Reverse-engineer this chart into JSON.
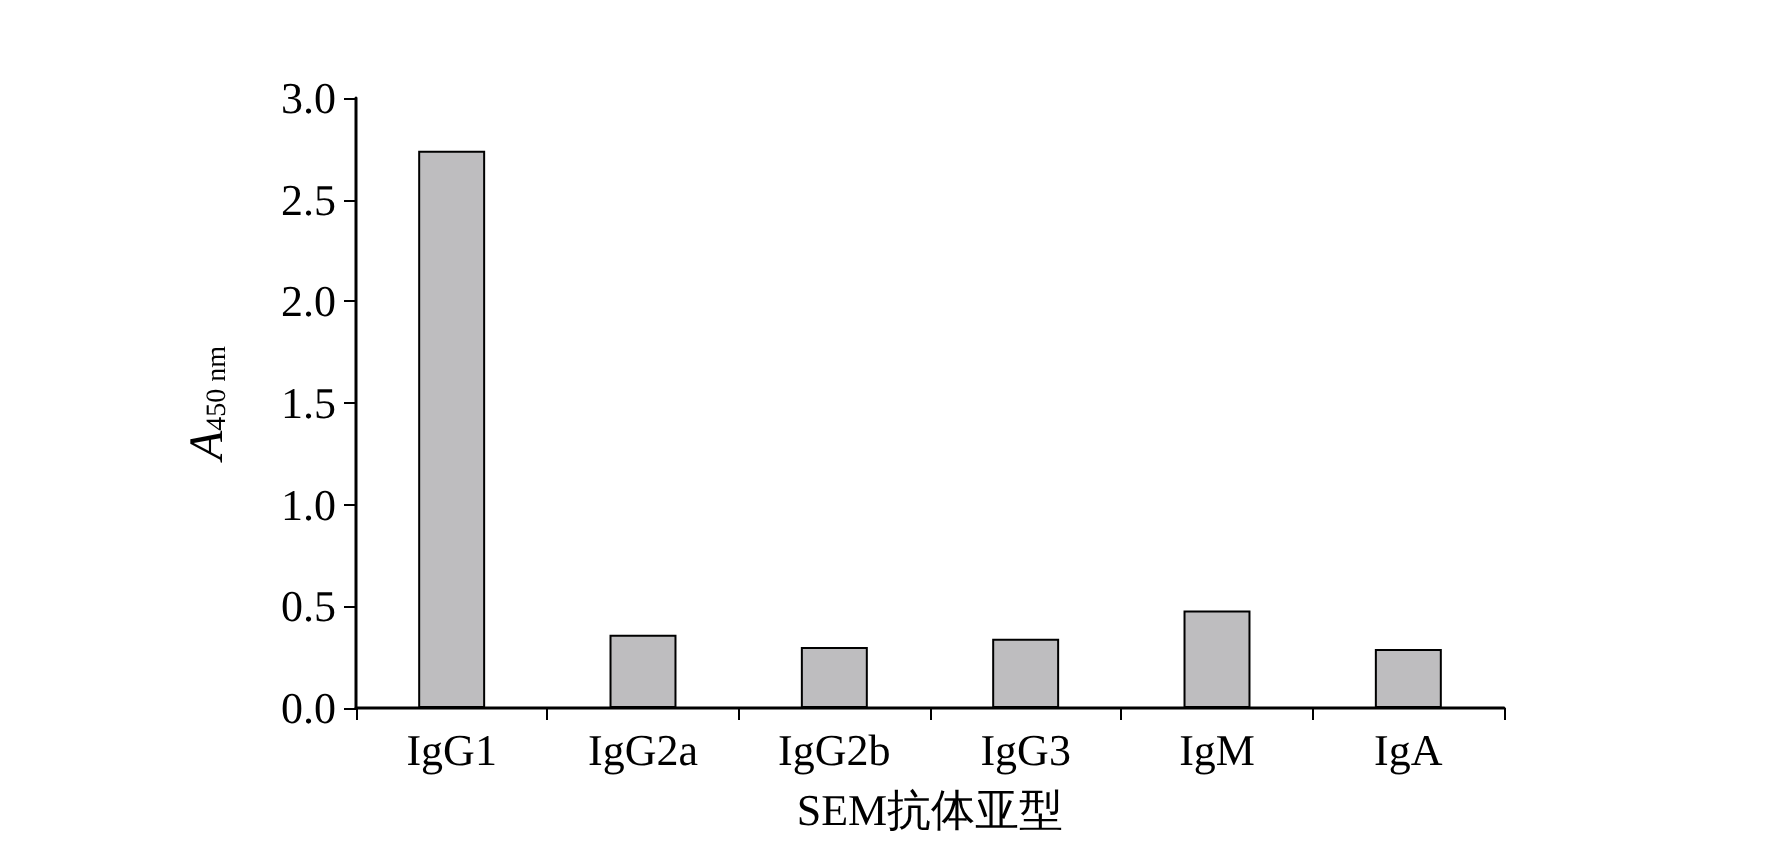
{
  "chart_data": {
    "type": "bar",
    "xlabel": "SEM抗体亚型",
    "ylabel": "A$_{450 nm}$",
    "categories": [
      "IgG1",
      "IgG2a",
      "IgG2b",
      "IgG3",
      "IgM",
      "IgA"
    ],
    "values": [
      2.74,
      0.36,
      0.3,
      0.34,
      0.48,
      0.29
    ],
    "color": "#bebdbf",
    "ylim": [
      0,
      3
    ],
    "yticks": [
      {
        "value": 0,
        "label": "0.0"
      },
      {
        "value": 0.5,
        "label": "0.5"
      },
      {
        "value": 1,
        "label": "1.0"
      },
      {
        "value": 1.5,
        "label": "1.5"
      },
      {
        "value": 2,
        "label": "2.0"
      },
      {
        "value": 2.5,
        "label": "2.5"
      },
      {
        "value": 3,
        "label": "3.0"
      }
    ],
    "grid": false
  }
}
